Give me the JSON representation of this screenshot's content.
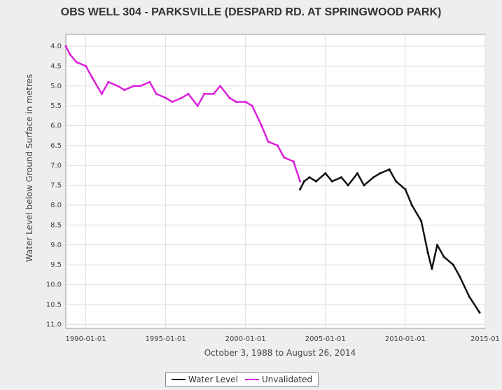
{
  "chart_data": {
    "type": "line",
    "title": "OBS WELL 304 - PARKSVILLE (DESPARD RD. AT SPRINGWOOD PARK)",
    "xlabel": "October 3, 1988 to August 26, 2014",
    "ylabel": "Water Level below Ground Surface in metres",
    "y_inverted": true,
    "ylim": [
      3.7,
      11.1
    ],
    "xlim": [
      "1988-10-01",
      "2015-01-01"
    ],
    "grid": true,
    "legend_position": "bottom",
    "x_ticks": [
      "1990-01-01",
      "1995-01-01",
      "2000-01-01",
      "2005-01-01",
      "2010-01-01",
      "2015-01"
    ],
    "y_ticks": [
      "4.0",
      "4.5",
      "5.0",
      "5.5",
      "6.0",
      "6.5",
      "7.0",
      "7.5",
      "8.0",
      "8.5",
      "9.0",
      "9.5",
      "10.0",
      "10.5",
      "11.0"
    ],
    "series": [
      {
        "name": "Water Level",
        "color": "#111111",
        "x": [
          "2003-06-01",
          "2003-09-01",
          "2004-01-01",
          "2004-06-01",
          "2005-01-01",
          "2005-06-01",
          "2006-01-01",
          "2006-06-01",
          "2007-01-01",
          "2007-06-01",
          "2008-01-01",
          "2008-06-01",
          "2009-01-01",
          "2009-06-01",
          "2010-01-01",
          "2010-06-01",
          "2011-01-01",
          "2011-06-01",
          "2011-09-01",
          "2012-01-01",
          "2012-06-01",
          "2013-01-01",
          "2013-06-01",
          "2014-01-01",
          "2014-08-26"
        ],
        "y": [
          7.6,
          7.4,
          7.3,
          7.4,
          7.2,
          7.4,
          7.3,
          7.5,
          7.2,
          7.5,
          7.3,
          7.2,
          7.1,
          7.4,
          7.6,
          8.0,
          8.4,
          9.2,
          9.6,
          9.0,
          9.3,
          9.5,
          9.8,
          10.3,
          10.7
        ]
      },
      {
        "name": "Unvalidated",
        "color": "#dd22dd",
        "x": [
          "1988-10-03",
          "1989-01-01",
          "1989-06-01",
          "1990-01-01",
          "1990-06-01",
          "1991-01-01",
          "1991-06-01",
          "1992-01-01",
          "1992-06-01",
          "1993-01-01",
          "1993-06-01",
          "1994-01-01",
          "1994-06-01",
          "1995-01-01",
          "1995-06-01",
          "1996-01-01",
          "1996-06-01",
          "1997-01-01",
          "1997-06-01",
          "1998-01-01",
          "1998-06-01",
          "1999-01-01",
          "1999-06-01",
          "2000-01-01",
          "2000-06-01",
          "2001-01-01",
          "2001-06-01",
          "2002-01-01",
          "2002-06-01",
          "2003-01-01",
          "2003-06-01"
        ],
        "y": [
          4.0,
          4.2,
          4.4,
          4.5,
          4.8,
          5.2,
          4.9,
          5.0,
          5.1,
          5.0,
          5.0,
          4.9,
          5.2,
          5.3,
          5.4,
          5.3,
          5.2,
          5.5,
          5.2,
          5.2,
          5.0,
          5.3,
          5.4,
          5.4,
          5.5,
          6.0,
          6.4,
          6.5,
          6.8,
          6.9,
          7.4
        ]
      }
    ]
  }
}
